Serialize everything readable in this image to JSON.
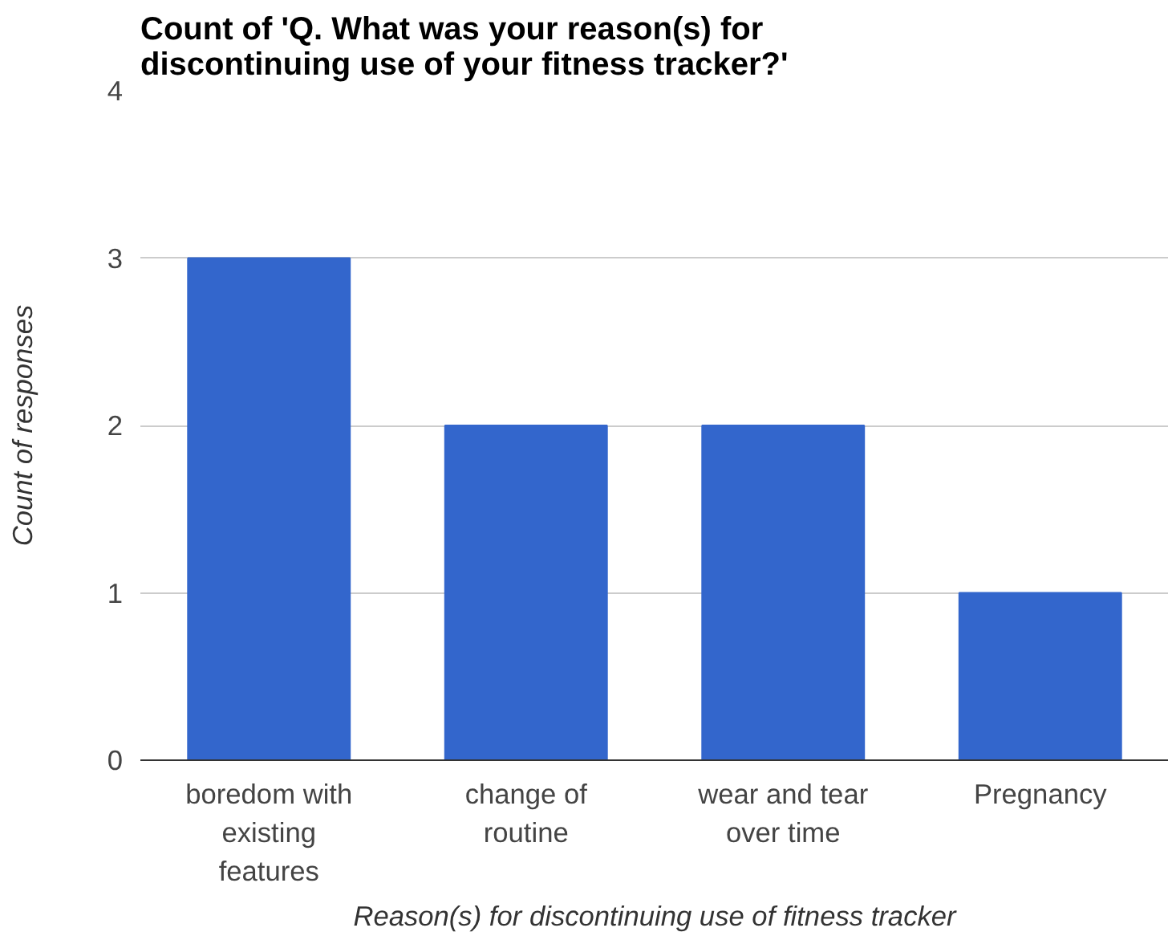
{
  "chart_data": {
    "type": "bar",
    "title": "Count of 'Q. What was your reason(s) for discontinuing use of your fitness tracker?'",
    "xlabel": "Reason(s) for discontinuing use of fitness tracker",
    "ylabel": "Count of responses",
    "categories": [
      "boredom with existing features",
      "change of routine",
      "wear and tear over time",
      "Pregnancy"
    ],
    "values": [
      3,
      2,
      2,
      1
    ],
    "color": "#3366cc",
    "ylim": [
      0,
      4
    ],
    "yticks": [
      0,
      1,
      2,
      3,
      4
    ],
    "grid": "y"
  }
}
